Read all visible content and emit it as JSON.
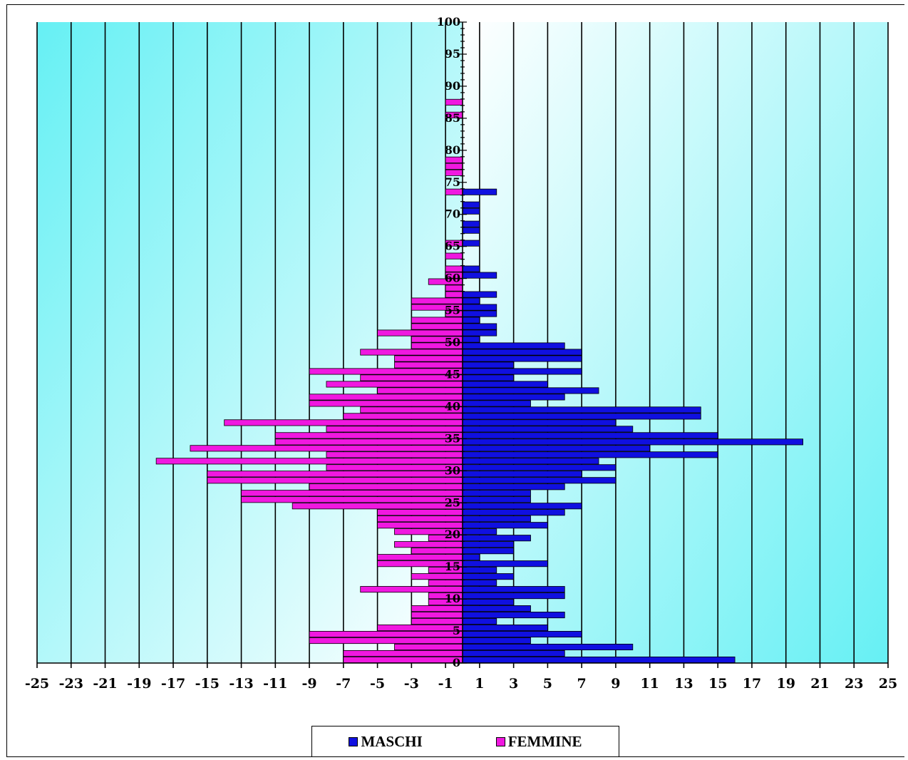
{
  "chart_data": {
    "type": "bar",
    "orientation": "horizontal",
    "xlim": [
      -25,
      25
    ],
    "x_ticks": [
      -25,
      -23,
      -21,
      -19,
      -17,
      -15,
      -13,
      -11,
      -9,
      -7,
      -5,
      -3,
      -1,
      1,
      3,
      5,
      7,
      9,
      11,
      13,
      15,
      17,
      19,
      21,
      23,
      25
    ],
    "ylim": [
      0,
      100
    ],
    "y_ticks": [
      0,
      5,
      10,
      15,
      20,
      25,
      30,
      35,
      40,
      45,
      50,
      55,
      60,
      65,
      70,
      75,
      80,
      85,
      90,
      95,
      100
    ],
    "grid": true,
    "legend_position": "bottom-center",
    "categories": [
      0,
      1,
      2,
      3,
      4,
      5,
      6,
      7,
      8,
      9,
      10,
      11,
      12,
      13,
      14,
      15,
      16,
      17,
      18,
      19,
      20,
      21,
      22,
      23,
      24,
      25,
      26,
      27,
      28,
      29,
      30,
      31,
      32,
      33,
      34,
      35,
      36,
      37,
      38,
      39,
      40,
      41,
      42,
      43,
      44,
      45,
      46,
      47,
      48,
      49,
      50,
      51,
      52,
      53,
      54,
      55,
      56,
      57,
      58,
      59,
      60,
      61,
      62,
      63,
      64,
      65,
      66,
      67,
      68,
      69,
      70,
      71,
      72,
      73,
      74,
      75,
      76,
      77,
      78,
      79,
      80,
      81,
      82,
      83,
      84,
      85,
      86,
      87
    ],
    "series": [
      {
        "name": "MASCHI",
        "color": "#1010e0",
        "values": [
          16,
          6,
          10,
          4,
          7,
          5,
          2,
          6,
          4,
          3,
          6,
          6,
          2,
          3,
          2,
          5,
          1,
          3,
          3,
          4,
          2,
          5,
          4,
          6,
          7,
          4,
          4,
          6,
          9,
          7,
          9,
          8,
          15,
          11,
          20,
          15,
          10,
          9,
          14,
          14,
          4,
          6,
          8,
          5,
          3,
          7,
          3,
          7,
          7,
          6,
          1,
          2,
          2,
          1,
          2,
          2,
          1,
          2,
          0,
          0,
          2,
          1,
          0,
          0,
          0,
          1,
          0,
          1,
          1,
          0,
          1,
          1,
          0,
          2,
          0,
          0,
          0,
          0,
          0,
          0,
          0,
          0,
          0,
          0,
          0,
          0,
          0,
          0
        ]
      },
      {
        "name": "FEMMINE",
        "color": "#f018e0",
        "values": [
          7,
          7,
          4,
          9,
          9,
          5,
          3,
          3,
          3,
          2,
          2,
          6,
          2,
          3,
          2,
          5,
          5,
          3,
          4,
          2,
          4,
          5,
          5,
          5,
          10,
          13,
          13,
          9,
          15,
          15,
          8,
          18,
          8,
          16,
          11,
          11,
          8,
          14,
          7,
          6,
          9,
          9,
          5,
          8,
          6,
          9,
          4,
          4,
          6,
          3,
          3,
          5,
          3,
          3,
          1,
          3,
          3,
          1,
          1,
          2,
          1,
          1,
          0,
          1,
          0,
          1,
          0,
          0,
          0,
          0,
          0,
          0,
          0,
          1,
          0,
          0,
          1,
          1,
          1,
          0,
          0,
          0,
          0,
          0,
          0,
          1,
          0,
          1
        ]
      }
    ]
  }
}
